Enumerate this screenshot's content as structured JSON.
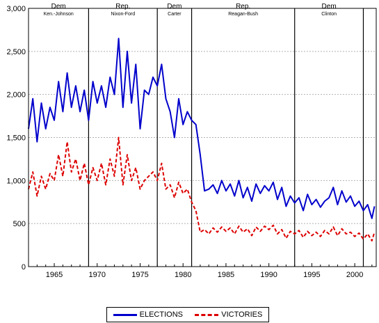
{
  "chart_data": {
    "type": "line",
    "x_ticks": [
      1965,
      1970,
      1975,
      1980,
      1985,
      1990,
      1995,
      2000
    ],
    "xlim": [
      1962,
      2002.5
    ],
    "ylim": [
      0,
      3000
    ],
    "y_ticks": [
      0,
      500,
      1000,
      1500,
      2000,
      2500,
      3000
    ],
    "y_tick_labels": [
      "0",
      "500",
      "1,000",
      "1,500",
      "2,000",
      "2,500",
      "3,000"
    ],
    "grid": "horizontal dotted",
    "legend_placement": "bottom-center",
    "administrations": [
      {
        "party": "Dem",
        "name": "Ken.-Johnson",
        "start": 1962,
        "end": 1969
      },
      {
        "party": "Rep.",
        "name": "Nixon-Ford",
        "start": 1969,
        "end": 1977
      },
      {
        "party": "Dem",
        "name": "Carter",
        "start": 1977,
        "end": 1981
      },
      {
        "party": "Rep.",
        "name": "Reagan-Bush",
        "start": 1981,
        "end": 1993
      },
      {
        "party": "Dem",
        "name": "Clinton",
        "start": 1993,
        "end": 2001
      }
    ],
    "dividers": [
      1969,
      1977,
      1981,
      1993,
      2001
    ],
    "series": [
      {
        "name": "ELECTIONS",
        "color": "#0000cc",
        "style": "solid",
        "x": [
          1962,
          1962.5,
          1963,
          1963.5,
          1964,
          1964.5,
          1965,
          1965.5,
          1966,
          1966.5,
          1967,
          1967.5,
          1968,
          1968.5,
          1969,
          1969.5,
          1970,
          1970.5,
          1971,
          1971.5,
          1972,
          1972.5,
          1973,
          1973.5,
          1974,
          1974.5,
          1975,
          1975.5,
          1976,
          1976.5,
          1977,
          1977.5,
          1978,
          1978.5,
          1979,
          1979.5,
          1980,
          1980.5,
          1981,
          1981.5,
          1982,
          1982.5,
          1983,
          1983.5,
          1984,
          1984.5,
          1985,
          1985.5,
          1986,
          1986.5,
          1987,
          1987.5,
          1988,
          1988.5,
          1989,
          1989.5,
          1990,
          1990.5,
          1991,
          1991.5,
          1992,
          1992.5,
          1993,
          1993.5,
          1994,
          1994.5,
          1995,
          1995.5,
          1996,
          1996.5,
          1997,
          1997.5,
          1998,
          1998.5,
          1999,
          1999.5,
          2000,
          2000.5,
          2001,
          2001.5,
          2002,
          2002.3
        ],
        "values": [
          1600,
          1950,
          1450,
          1900,
          1600,
          1850,
          1700,
          2150,
          1800,
          2250,
          1850,
          2100,
          1800,
          2050,
          1700,
          2150,
          1900,
          2100,
          1850,
          2200,
          2000,
          2650,
          1850,
          2500,
          1900,
          2350,
          1600,
          2050,
          2000,
          2200,
          2100,
          2350,
          1950,
          1800,
          1500,
          1950,
          1650,
          1800,
          1700,
          1650,
          1300,
          880,
          900,
          950,
          850,
          1000,
          880,
          960,
          820,
          1000,
          800,
          920,
          760,
          960,
          850,
          940,
          880,
          980,
          780,
          920,
          700,
          820,
          740,
          800,
          650,
          840,
          720,
          780,
          690,
          760,
          800,
          920,
          720,
          880,
          750,
          820,
          700,
          760,
          650,
          720,
          560,
          700
        ]
      },
      {
        "name": "VICTORIES",
        "color": "#dd0000",
        "style": "dashed",
        "x": [
          1962,
          1962.5,
          1963,
          1963.5,
          1964,
          1964.5,
          1965,
          1965.5,
          1966,
          1966.5,
          1967,
          1967.5,
          1968,
          1968.5,
          1969,
          1969.5,
          1970,
          1970.5,
          1971,
          1971.5,
          1972,
          1972.5,
          1973,
          1973.5,
          1974,
          1974.5,
          1975,
          1975.5,
          1976,
          1976.5,
          1977,
          1977.5,
          1978,
          1978.5,
          1979,
          1979.5,
          1980,
          1980.5,
          1981,
          1981.5,
          1982,
          1982.5,
          1983,
          1983.5,
          1984,
          1984.5,
          1985,
          1985.5,
          1986,
          1986.5,
          1987,
          1987.5,
          1988,
          1988.5,
          1989,
          1989.5,
          1990,
          1990.5,
          1991,
          1991.5,
          1992,
          1992.5,
          1993,
          1993.5,
          1994,
          1994.5,
          1995,
          1995.5,
          1996,
          1996.5,
          1997,
          1997.5,
          1998,
          1998.5,
          1999,
          1999.5,
          2000,
          2000.5,
          2001,
          2001.5,
          2002,
          2002.3
        ],
        "values": [
          900,
          1100,
          820,
          1050,
          900,
          1080,
          1000,
          1300,
          1050,
          1450,
          1100,
          1250,
          1000,
          1200,
          950,
          1150,
          1000,
          1200,
          950,
          1250,
          1050,
          1500,
          950,
          1300,
          1000,
          1150,
          900,
          1000,
          1050,
          1100,
          1000,
          1200,
          900,
          950,
          800,
          980,
          850,
          900,
          750,
          650,
          400,
          430,
          380,
          450,
          400,
          460,
          410,
          450,
          380,
          470,
          400,
          440,
          360,
          460,
          410,
          470,
          430,
          480,
          380,
          430,
          330,
          410,
          380,
          420,
          340,
          410,
          360,
          400,
          350,
          420,
          380,
          460,
          360,
          440,
          380,
          400,
          350,
          390,
          320,
          380,
          300,
          400
        ]
      }
    ]
  }
}
